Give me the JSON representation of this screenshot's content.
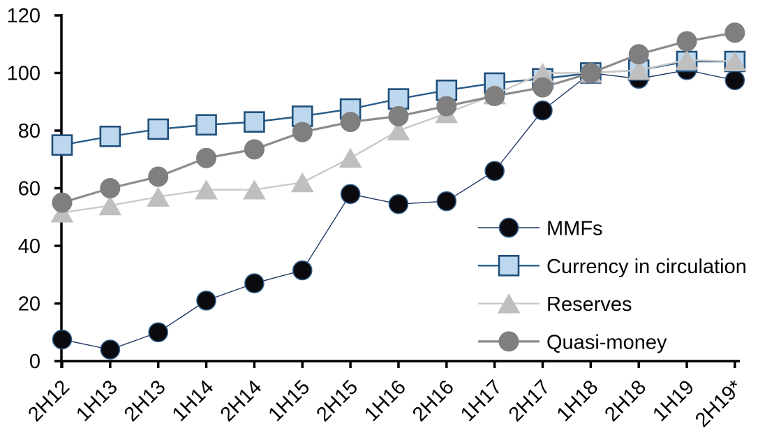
{
  "chart_data": {
    "type": "line",
    "title": "",
    "xlabel": "",
    "ylabel": "",
    "categories": [
      "2H12",
      "1H13",
      "2H13",
      "1H14",
      "2H14",
      "1H15",
      "2H15",
      "1H16",
      "2H16",
      "1H17",
      "2H17",
      "1H18",
      "2H18",
      "1H19",
      "2H19*"
    ],
    "series": [
      {
        "name": "MMFs",
        "marker": "circle",
        "marker_color": "#0b0b0f",
        "marker_border": "#2e5c8a",
        "marker_border_width": 1.5,
        "marker_size": 27,
        "line_color": "#203864",
        "line_width": 1.4,
        "values": [
          7.5,
          4,
          10,
          21,
          27,
          31.5,
          58,
          54.5,
          55.5,
          66,
          87,
          100,
          98,
          101,
          97.5
        ]
      },
      {
        "name": "Currency in circulation",
        "marker": "square",
        "marker_color": "#bdd7ee",
        "marker_border": "#1f4e79",
        "marker_border_width": 2.6,
        "marker_size": 28,
        "line_color": "#265a87",
        "line_width": 2.4,
        "values": [
          75,
          78,
          80.5,
          82,
          83,
          85,
          87.5,
          91,
          94,
          96.5,
          98,
          100,
          101,
          104,
          104
        ]
      },
      {
        "name": "Reserves",
        "marker": "triangle",
        "marker_color": "#bfbfbf",
        "marker_border": "#bfbfbf",
        "marker_border_width": 1,
        "marker_size": 31,
        "line_color": "#c9c9c9",
        "line_width": 2.4,
        "values": [
          51.5,
          54,
          57,
          59.5,
          59.5,
          62,
          70.5,
          80,
          86,
          92.5,
          100,
          100,
          101,
          104.5,
          104
        ]
      },
      {
        "name": "Quasi-money",
        "marker": "circle",
        "marker_color": "#7f7f7f",
        "marker_border": "#7f7f7f",
        "marker_border_width": 1,
        "marker_size": 28,
        "line_color": "#8c8c8c",
        "line_width": 3.2,
        "values": [
          55,
          60,
          64,
          70.5,
          73.5,
          79.5,
          83,
          85,
          88.5,
          92,
          95,
          100,
          106.5,
          111,
          114
        ]
      }
    ],
    "ylim": [
      0,
      120
    ],
    "ytick_step": 20,
    "grid": false,
    "legend_position": "inside-right",
    "axis_color": "#000000"
  }
}
